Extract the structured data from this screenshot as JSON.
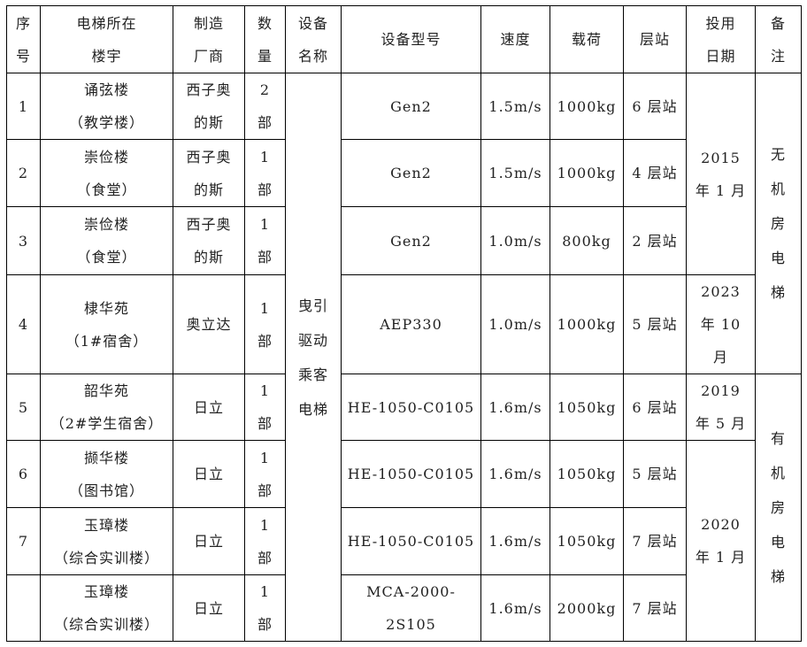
{
  "headers": [
    "序\n号",
    "电梯所在\n楼宇",
    "制造\n厂商",
    "数\n量",
    "设备\n名称",
    "设备型号",
    "速度",
    "载荷",
    "层站",
    "投用\n日期",
    "备\n注"
  ],
  "equipment_name": "曳引\n驱动\n乘客\n电梯",
  "rows": [
    {
      "no": "1",
      "building": "诵弦楼\n（教学楼）",
      "maker": "西子奥\n的斯",
      "qty": "2\n部",
      "model": "Gen2",
      "speed": "1.5m/s",
      "load": "1000kg",
      "floors": "6 层站"
    },
    {
      "no": "2",
      "building": "崇俭楼\n（食堂）",
      "maker": "西子奥\n的斯",
      "qty": "1\n部",
      "model": "Gen2",
      "speed": "1.5m/s",
      "load": "1000kg",
      "floors": "4 层站"
    },
    {
      "no": "3",
      "building": "崇俭楼\n（食堂）",
      "maker": "西子奥\n的斯",
      "qty": "1\n部",
      "model": "Gen2",
      "speed": "1.0m/s",
      "load": "800kg",
      "floors": "2 层站"
    },
    {
      "no": "4",
      "building": "棣华苑\n（1#宿舍）",
      "maker": "奥立达",
      "qty": "1\n部",
      "model": "AEP330",
      "speed": "1.0m/s",
      "load": "1000kg",
      "floors": "5 层站"
    },
    {
      "no": "5",
      "building": "韶华苑\n（2#学生宿舍）",
      "maker": "日立",
      "qty": "1\n部",
      "model": "HE-1050-C0105",
      "speed": "1.6m/s",
      "load": "1050kg",
      "floors": "6 层站"
    },
    {
      "no": "6",
      "building": "撷华楼\n（图书馆）",
      "maker": "日立",
      "qty": "1\n部",
      "model": "HE-1050-C0105",
      "speed": "1.6m/s",
      "load": "1050kg",
      "floors": "5 层站"
    },
    {
      "no": "7",
      "building": "玉璋楼\n（综合实训楼）",
      "maker": "日立",
      "qty": "1\n部",
      "model": "HE-1050-C0105",
      "speed": "1.6m/s",
      "load": "1050kg",
      "floors": "7 层站"
    },
    {
      "no": "",
      "building": "玉璋楼\n（综合实训楼）",
      "maker": "日立",
      "qty": "1\n部",
      "model": "MCA-2000-2S105",
      "speed": "1.6m/s",
      "load": "2000kg",
      "floors": "7 层站"
    }
  ],
  "dates": [
    {
      "text": "2015\n年 1 月",
      "start": 0,
      "span": 3
    },
    {
      "text": "2023\n年 10\n月",
      "start": 3,
      "span": 1
    },
    {
      "text": "2019\n年 5 月",
      "start": 4,
      "span": 1
    },
    {
      "text": "2020\n年 1 月",
      "start": 5,
      "span": 3
    }
  ],
  "remarks": [
    {
      "text": "无\n机\n房\n电\n梯",
      "start": 0,
      "span": 4
    },
    {
      "text": "有\n机\n房\n电\n梯",
      "start": 4,
      "span": 4
    }
  ]
}
